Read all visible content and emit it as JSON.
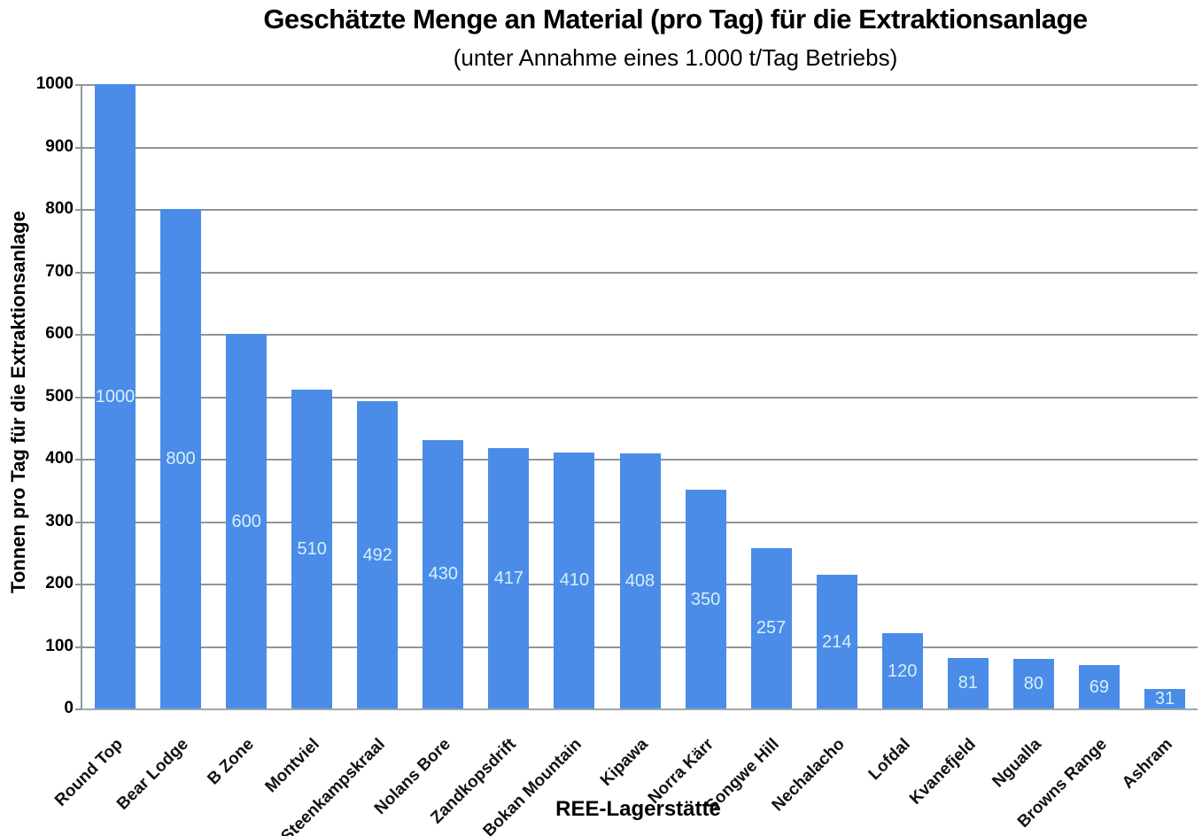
{
  "chart_data": {
    "type": "bar",
    "title": "Geschätzte Menge an Material (pro Tag) für die Extraktionsanlage",
    "subtitle": "(unter Annahme eines 1.000 t/Tag Betriebs)",
    "xlabel": "REE-Lagerstätte",
    "ylabel": "Tonnen pro Tag für die Extraktionsanlage",
    "categories": [
      "Round Top",
      "Bear Lodge",
      "B Zone",
      "Montviel",
      "Steenkampskraal",
      "Nolans Bore",
      "Zandkopsdrift",
      "Bokan Mountain",
      "Kipawa",
      "Norra Kärr",
      "Songwe Hill",
      "Nechalacho",
      "Lofdal",
      "Kvanefjeld",
      "Ngualla",
      "Browns Range",
      "Ashram"
    ],
    "values": [
      1000,
      800,
      600,
      510,
      492,
      430,
      417,
      410,
      408,
      350,
      257,
      214,
      120,
      81,
      80,
      69,
      31
    ],
    "ylim": [
      0,
      1000
    ],
    "ytick_interval": 100,
    "grid": true,
    "legend": "none",
    "bar_labels_inside": true,
    "colors": {
      "bar": "#4a8ce8",
      "bar_label_text": "#d8effa",
      "gridline": "#8d9696",
      "axis_text": "#000000"
    }
  }
}
